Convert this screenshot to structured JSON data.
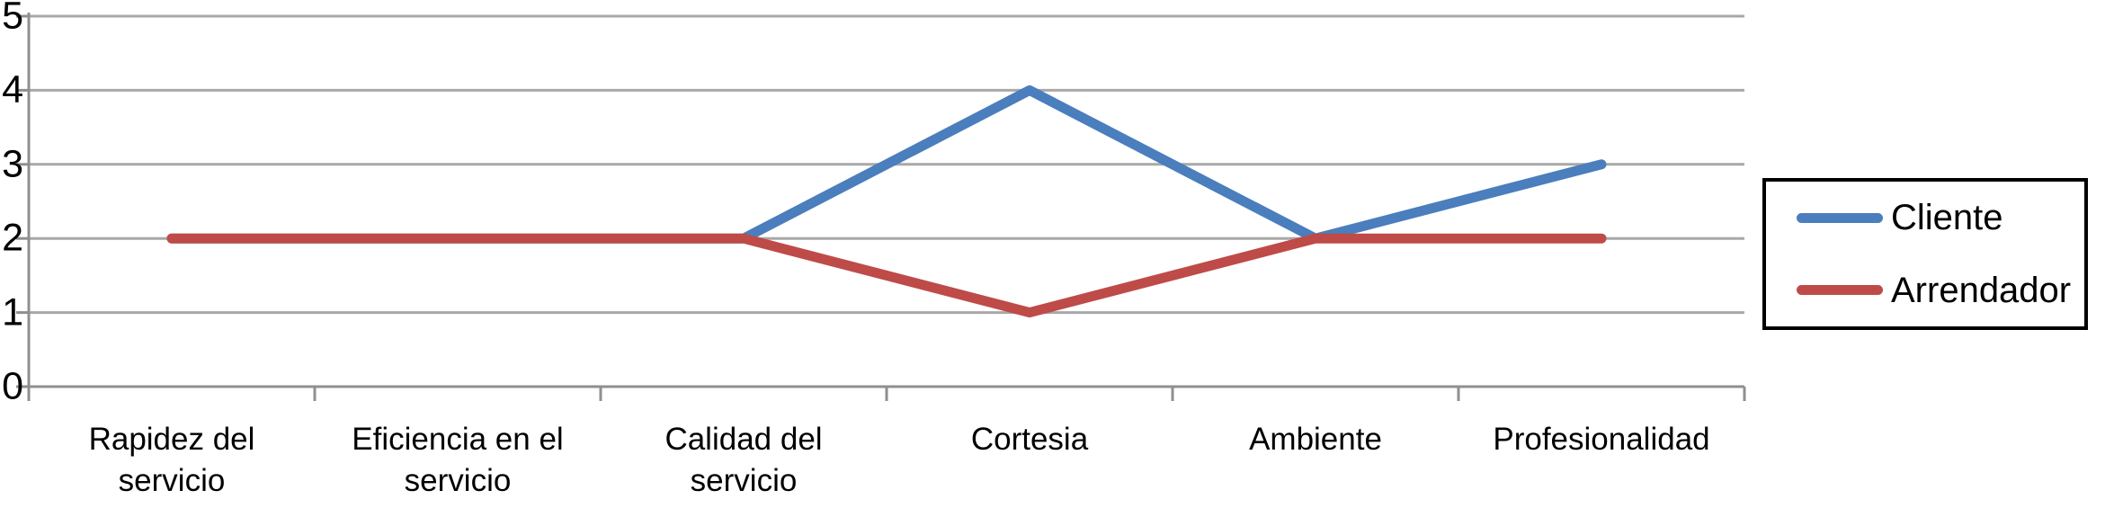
{
  "chart_data": {
    "type": "line",
    "categories": [
      "Rapidez del\nservicio",
      "Eficiencia en el\nservicio",
      "Calidad del\nservicio",
      "Cortesia",
      "Ambiente",
      "Profesionalidad"
    ],
    "series": [
      {
        "name": "Cliente",
        "color": "#4A7EBD",
        "values": [
          2,
          2,
          2,
          4,
          2,
          3
        ]
      },
      {
        "name": "Arrendador",
        "color": "#BE4B48",
        "values": [
          2,
          2,
          2,
          1,
          2,
          2
        ]
      }
    ],
    "yticks": [
      0,
      1,
      2,
      3,
      4,
      5
    ],
    "ylim": [
      0,
      5
    ],
    "grid": true,
    "legend_position": "right",
    "gridline_color": "#A8A8A8",
    "axis_color": "#8F8F8F",
    "text_color": "#000000",
    "title": "",
    "xlabel": "",
    "ylabel": ""
  }
}
